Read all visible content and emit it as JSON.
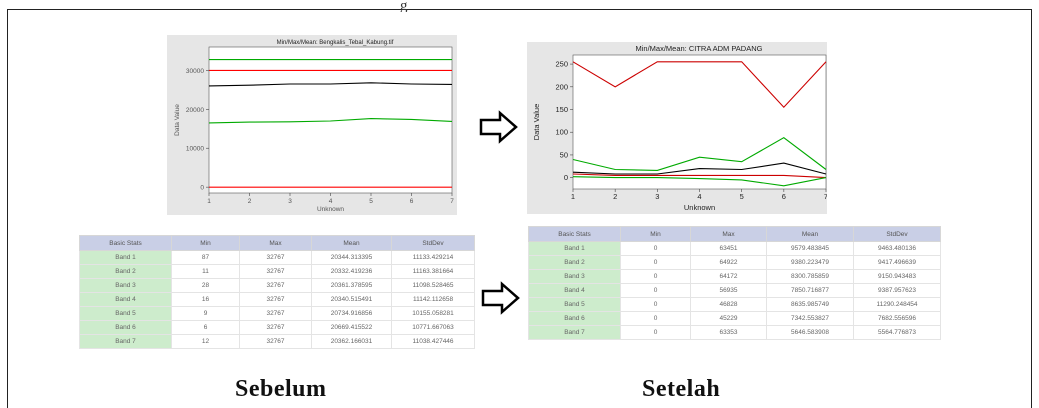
{
  "header_fragment": "g",
  "captions": {
    "before": "Sebelum",
    "after": "Setelah"
  },
  "chart_data": [
    {
      "type": "line",
      "title": "Min/Max/Mean: Bengkalis_Tebal_Kabung.tif",
      "xlabel": "Unknown",
      "ylabel": "Data Value",
      "x": [
        1,
        2,
        3,
        4,
        5,
        6,
        7
      ],
      "xticks": [
        "1",
        "2",
        "3",
        "4",
        "5",
        "6",
        "7"
      ],
      "yticks": [
        0,
        10000,
        20000,
        30000
      ],
      "yticklabels": [
        "0",
        "10000",
        "20000",
        "30000"
      ],
      "ylim": [
        -1500,
        36000
      ],
      "grid": false,
      "series": [
        {
          "color": "#00aa00",
          "values": [
            32767,
            32767,
            32767,
            32767,
            32767,
            32767,
            32767
          ]
        },
        {
          "color": "#ff0000",
          "values": [
            30000,
            30000,
            30000,
            30000,
            30000,
            30000,
            30000
          ]
        },
        {
          "color": "#000000",
          "values": [
            26000,
            26200,
            26500,
            26500,
            26800,
            26500,
            26400
          ]
        },
        {
          "color": "#00aa00",
          "values": [
            16500,
            16700,
            16800,
            17000,
            17600,
            17400,
            16900
          ]
        },
        {
          "color": "#ff0000",
          "values": [
            0,
            0,
            0,
            0,
            0,
            0,
            0
          ]
        }
      ]
    },
    {
      "type": "line",
      "title": "Min/Max/Mean: CITRA ADM PADANG",
      "xlabel": "Unknown",
      "ylabel": "Data Value",
      "x": [
        1,
        2,
        3,
        4,
        5,
        6,
        7
      ],
      "xticks": [
        "1",
        "2",
        "3",
        "4",
        "5",
        "6",
        "7"
      ],
      "yticks": [
        0,
        50,
        100,
        150,
        200,
        250
      ],
      "yticklabels": [
        "0",
        "50",
        "100",
        "150",
        "200",
        "250"
      ],
      "ylim": [
        -25,
        270
      ],
      "grid": false,
      "series": [
        {
          "color": "#cc0000",
          "values": [
            255,
            200,
            255,
            255,
            255,
            155,
            255
          ]
        },
        {
          "color": "#00aa00",
          "values": [
            40,
            18,
            16,
            45,
            35,
            88,
            18
          ]
        },
        {
          "color": "#000000",
          "values": [
            12,
            8,
            8,
            20,
            18,
            32,
            8
          ]
        },
        {
          "color": "#cc0000",
          "values": [
            8,
            5,
            5,
            5,
            5,
            5,
            0
          ]
        },
        {
          "color": "#00aa00",
          "values": [
            2,
            0,
            0,
            -2,
            -5,
            -18,
            0
          ]
        }
      ]
    },
    {
      "type": "table",
      "columns": [
        "Basic Stats",
        "Min",
        "Max",
        "Mean",
        "StdDev"
      ],
      "rows": [
        [
          "Band 1",
          "87",
          "32767",
          "20344.313395",
          "11133.429214"
        ],
        [
          "Band 2",
          "11",
          "32767",
          "20332.419236",
          "11163.381664"
        ],
        [
          "Band 3",
          "28",
          "32767",
          "20361.378595",
          "11098.528465"
        ],
        [
          "Band 4",
          "16",
          "32767",
          "20340.515491",
          "11142.112658"
        ],
        [
          "Band 5",
          "9",
          "32767",
          "20734.916856",
          "10155.058281"
        ],
        [
          "Band 6",
          "6",
          "32767",
          "20669.415522",
          "10771.667063"
        ],
        [
          "Band 7",
          "12",
          "32767",
          "20362.166031",
          "11038.427446"
        ]
      ]
    },
    {
      "type": "table",
      "columns": [
        "Basic Stats",
        "Min",
        "Max",
        "Mean",
        "StdDev"
      ],
      "rows": [
        [
          "Band 1",
          "0",
          "63451",
          "9579.483845",
          "9463.480136"
        ],
        [
          "Band 2",
          "0",
          "64922",
          "9380.223479",
          "9417.496639"
        ],
        [
          "Band 3",
          "0",
          "64172",
          "8300.785859",
          "9150.943483"
        ],
        [
          "Band 4",
          "0",
          "56935",
          "7850.716877",
          "9387.957623"
        ],
        [
          "Band 5",
          "0",
          "46828",
          "8635.985749",
          "11290.248454"
        ],
        [
          "Band 6",
          "0",
          "45229",
          "7342.553827",
          "7682.556596"
        ],
        [
          "Band 7",
          "0",
          "63353",
          "5646.583908",
          "5564.776873"
        ]
      ]
    }
  ]
}
